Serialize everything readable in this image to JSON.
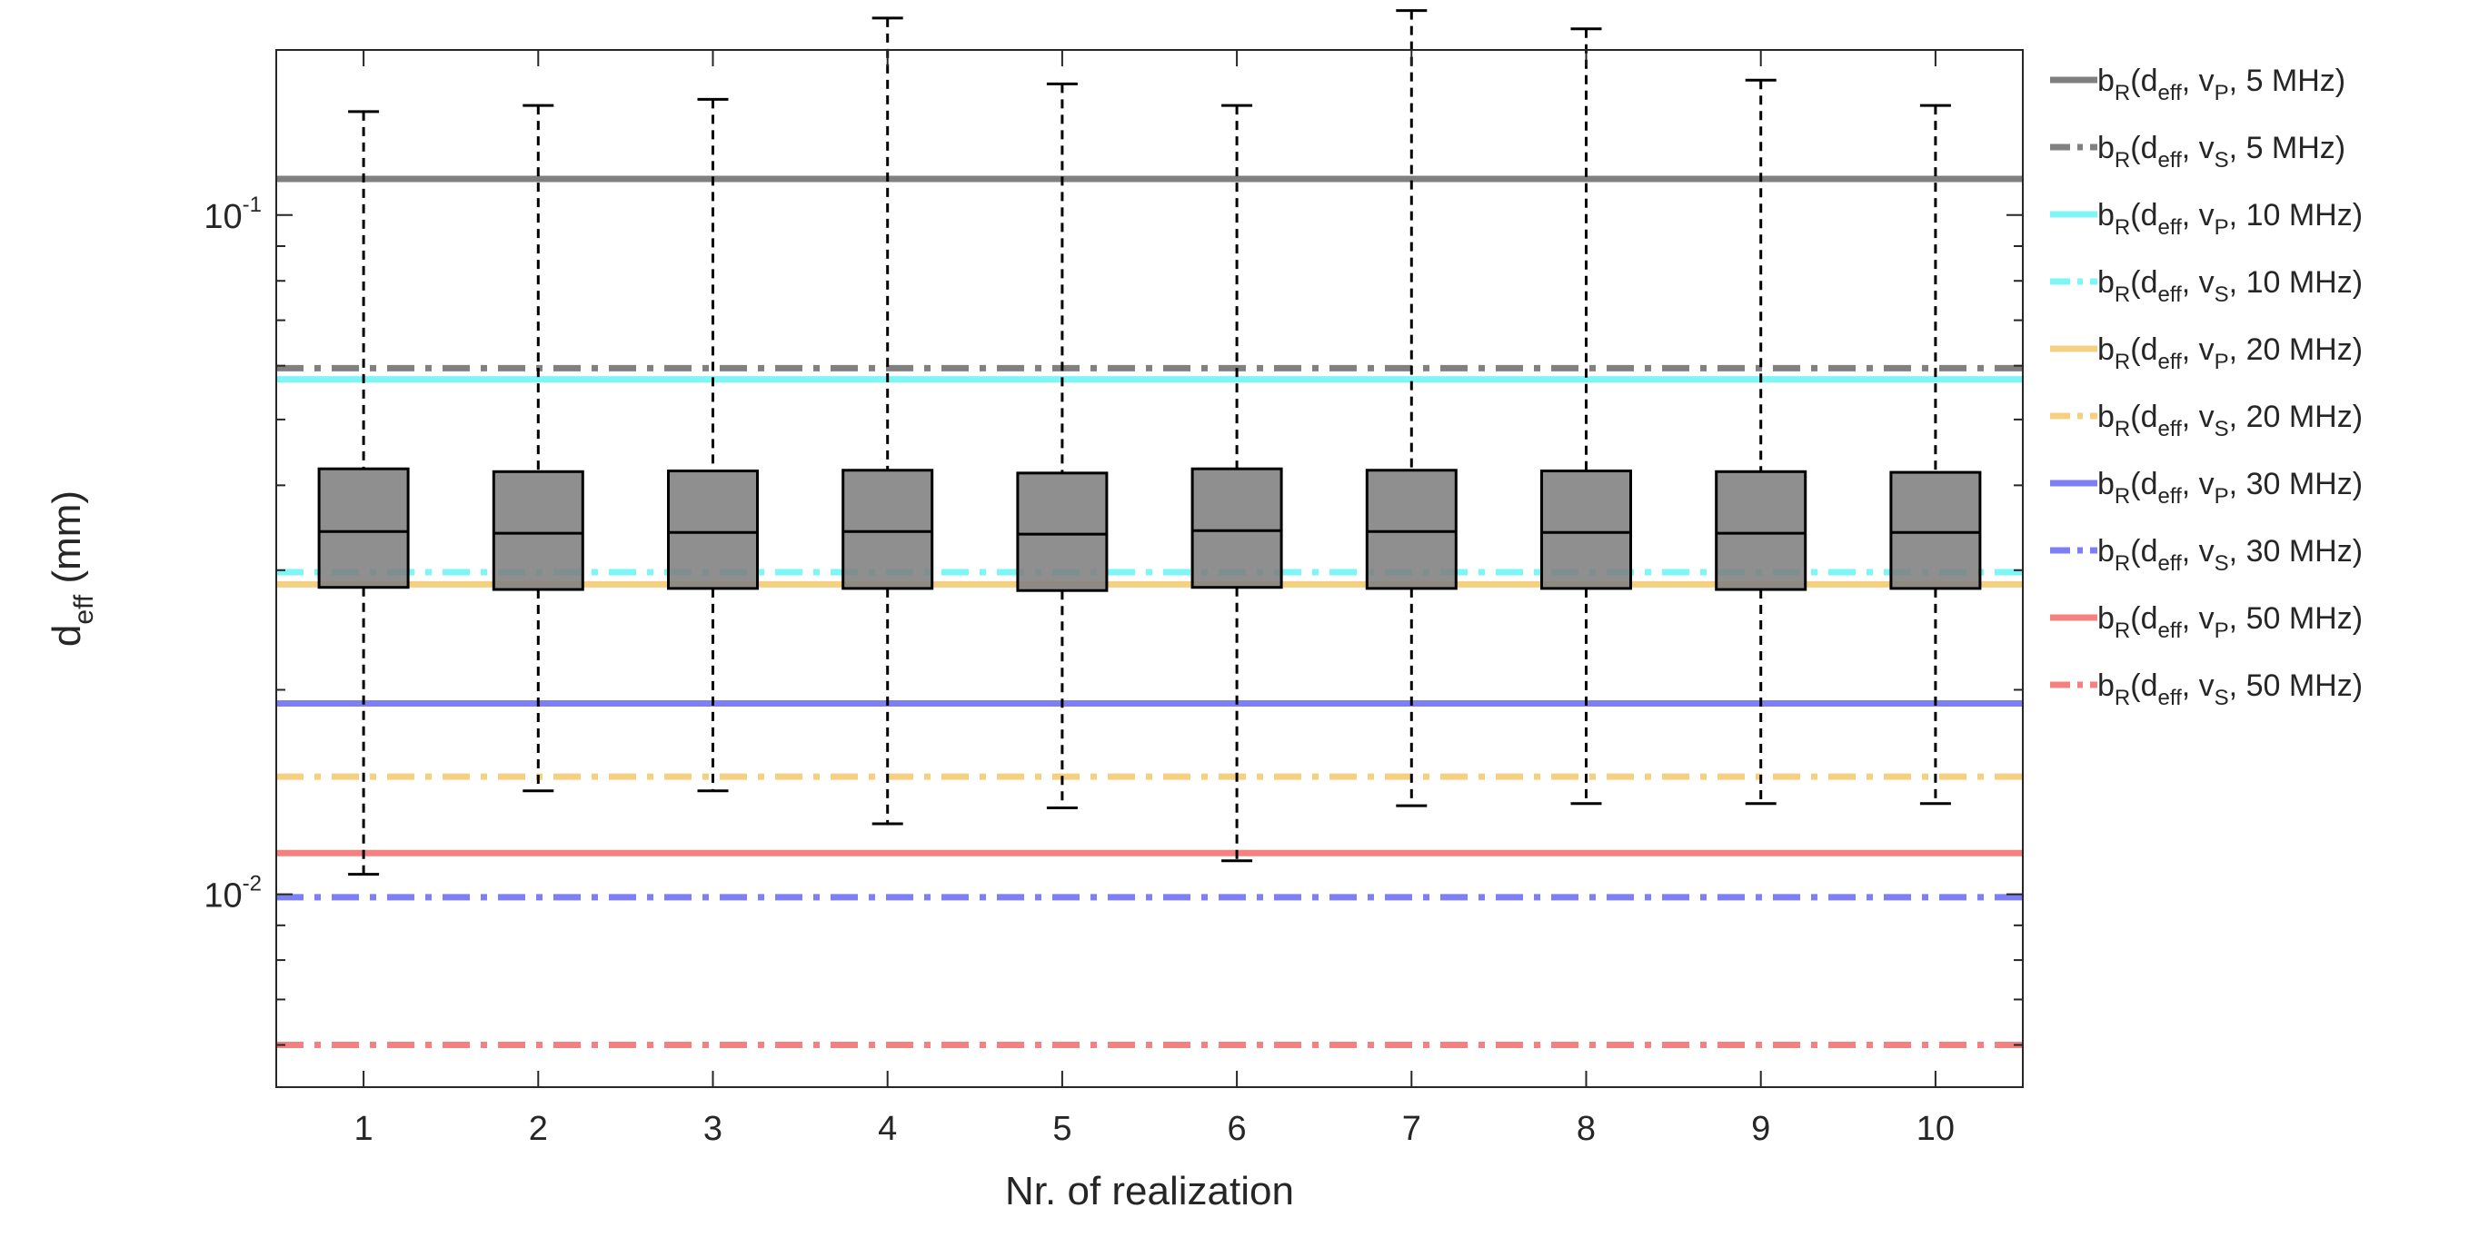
{
  "chart_data": {
    "type": "boxplot",
    "xlabel": "Nr. of realization",
    "ylabel": {
      "main": "d",
      "sub": "eff",
      "unit": " (mm)"
    },
    "yscale": "log",
    "ylim": [
      0.0052,
      0.175
    ],
    "xlim": [
      0.5,
      10.5
    ],
    "categories": [
      "1",
      "2",
      "3",
      "4",
      "5",
      "6",
      "7",
      "8",
      "9",
      "10"
    ],
    "yticks": [
      {
        "value": 0.1,
        "base": "10",
        "exp": "-1"
      },
      {
        "value": 0.01,
        "base": "10",
        "exp": "-2"
      }
    ],
    "boxes": [
      {
        "label": "1",
        "whisker_low": 0.0107,
        "q1": 0.0283,
        "median": 0.0342,
        "q3": 0.0423,
        "whisker_high": 0.142
      },
      {
        "label": "2",
        "whisker_low": 0.0142,
        "q1": 0.0281,
        "median": 0.034,
        "q3": 0.0419,
        "whisker_high": 0.145
      },
      {
        "label": "3",
        "whisker_low": 0.0142,
        "q1": 0.0282,
        "median": 0.0341,
        "q3": 0.042,
        "whisker_high": 0.148
      },
      {
        "label": "4",
        "whisker_low": 0.0127,
        "q1": 0.0282,
        "median": 0.0342,
        "q3": 0.0421,
        "whisker_high": 0.195
      },
      {
        "label": "5",
        "whisker_low": 0.0134,
        "q1": 0.028,
        "median": 0.0339,
        "q3": 0.0417,
        "whisker_high": 0.156
      },
      {
        "label": "6",
        "whisker_low": 0.0112,
        "q1": 0.0283,
        "median": 0.0343,
        "q3": 0.0423,
        "whisker_high": 0.145
      },
      {
        "label": "7",
        "whisker_low": 0.0135,
        "q1": 0.0282,
        "median": 0.0342,
        "q3": 0.0421,
        "whisker_high": 0.2
      },
      {
        "label": "8",
        "whisker_low": 0.0136,
        "q1": 0.0282,
        "median": 0.0341,
        "q3": 0.042,
        "whisker_high": 0.188
      },
      {
        "label": "9",
        "whisker_low": 0.0136,
        "q1": 0.0281,
        "median": 0.034,
        "q3": 0.0419,
        "whisker_high": 0.158
      },
      {
        "label": "10",
        "whisker_low": 0.0136,
        "q1": 0.0282,
        "median": 0.0341,
        "q3": 0.0418,
        "whisker_high": 0.145
      }
    ],
    "reference_lines": [
      {
        "value": 0.113,
        "color": "#808080",
        "style": "solid",
        "label": {
          "wave": "P",
          "freq": ", 5 MHz)"
        }
      },
      {
        "value": 0.0595,
        "color": "#808080",
        "style": "dashdot",
        "label": {
          "wave": "S",
          "freq": ", 5 MHz)"
        }
      },
      {
        "value": 0.0573,
        "color": "#7ff6f6",
        "style": "solid",
        "label": {
          "wave": "P",
          "freq": ", 10 MHz)"
        }
      },
      {
        "value": 0.0298,
        "color": "#7ff6f6",
        "style": "dashdot",
        "label": {
          "wave": "S",
          "freq": ", 10 MHz)"
        }
      },
      {
        "value": 0.0286,
        "color": "#f5d080",
        "style": "solid",
        "label": {
          "wave": "P",
          "freq": ", 20 MHz)"
        }
      },
      {
        "value": 0.0149,
        "color": "#f5d080",
        "style": "dashdot",
        "label": {
          "wave": "S",
          "freq": ", 20 MHz)"
        }
      },
      {
        "value": 0.0191,
        "color": "#7f7ff5",
        "style": "solid",
        "label": {
          "wave": "P",
          "freq": ", 30 MHz)"
        }
      },
      {
        "value": 0.0099,
        "color": "#7f7ff5",
        "style": "dashdot",
        "label": {
          "wave": "S",
          "freq": ", 30 MHz)"
        }
      },
      {
        "value": 0.0115,
        "color": "#f58080",
        "style": "solid",
        "label": {
          "wave": "P",
          "freq": ", 50 MHz)"
        }
      },
      {
        "value": 0.006,
        "color": "#f58080",
        "style": "dashdot",
        "label": {
          "wave": "S",
          "freq": ", 50 MHz)"
        }
      }
    ],
    "legend_text": {
      "prefix": "b",
      "prefix_sub": "R",
      "open": "(d",
      "d_sub": "eff",
      "mid": ", v"
    },
    "legend_position": "outside-right",
    "box_color": "#808080",
    "grid": false
  }
}
